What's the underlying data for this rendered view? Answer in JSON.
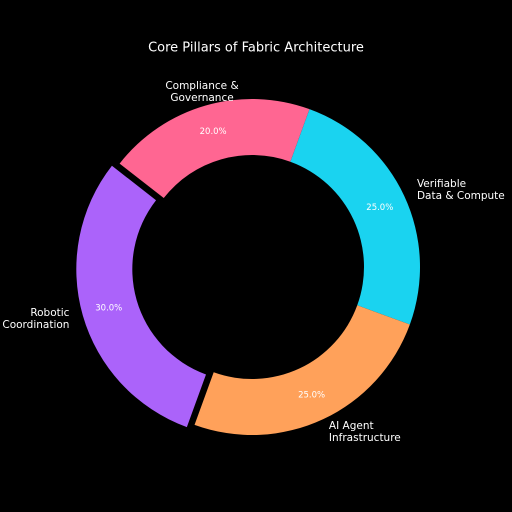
{
  "chart_data": {
    "type": "donut",
    "title": "Core Pillars of Fabric Architecture",
    "categories": [
      "Verifiable\nData & Compute",
      "AI Agent\nInfrastructure",
      "Robotic\nCoordination",
      "Compliance &\nGovernance"
    ],
    "values": [
      25,
      25,
      30,
      20
    ],
    "value_labels": [
      "25.0%",
      "25.0%",
      "30.0%",
      "20.0%"
    ],
    "colors": [
      "#1ad3f0",
      "#ffa15a",
      "#ab63fa",
      "#ff6692"
    ],
    "exploded": [
      false,
      false,
      true,
      false
    ]
  }
}
